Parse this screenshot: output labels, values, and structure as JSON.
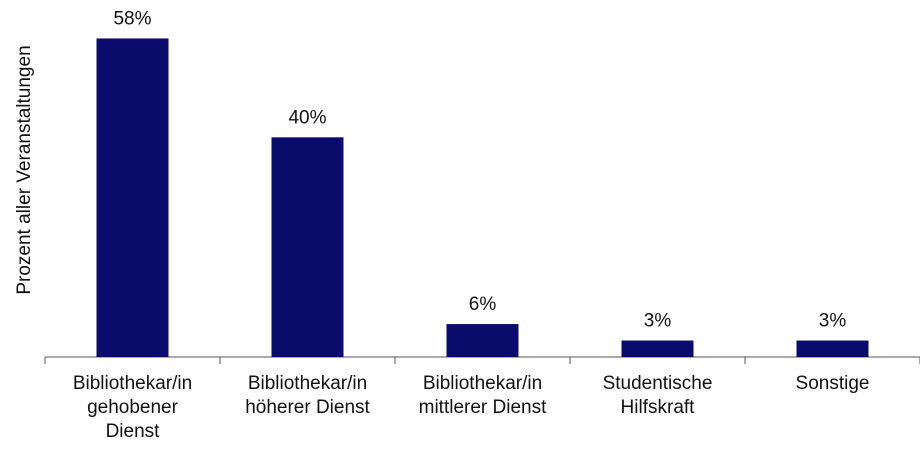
{
  "chart_data": {
    "type": "bar",
    "y_label": "Prozent aller Veranstaltungen",
    "categories": [
      "Bibliothekar/in\ngehobener\nDienst",
      "Bibliothekar/in\nhöherer Dienst",
      "Bibliothekar/in\nmittlerer Dienst",
      "Studentische\nHilfskraft",
      "Sonstige"
    ],
    "values": [
      58,
      40,
      6,
      3,
      3
    ],
    "value_labels": [
      "58%",
      "40%",
      "6%",
      "3%",
      "3%"
    ],
    "color": "#0b0b6b",
    "ylim": [
      0,
      65
    ]
  }
}
